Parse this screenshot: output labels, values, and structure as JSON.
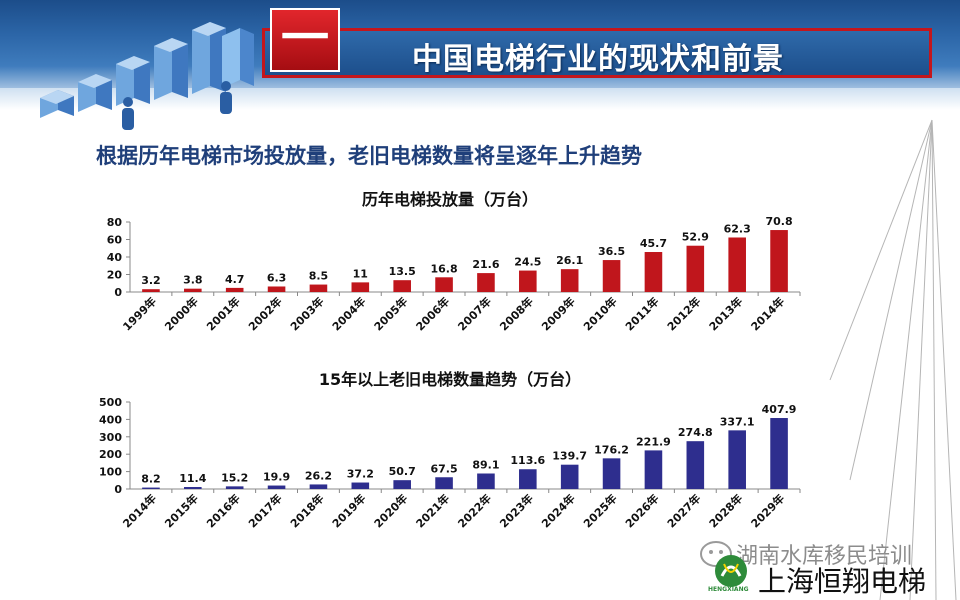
{
  "header": {
    "section_number": "一",
    "title": "中国电梯行业的现状和前景"
  },
  "subtitle": "根据历年电梯市场投放量，老旧电梯数量将呈逐年上升趋势",
  "colors": {
    "chart1_bar": "#c0161c",
    "chart2_bar": "#2e2e8e",
    "header_blue": "#2c66a8",
    "title_red": "#c4161c"
  },
  "chart_data": [
    {
      "type": "bar",
      "title": "历年电梯投放量（万台）",
      "categories": [
        "1999年",
        "2000年",
        "2001年",
        "2002年",
        "2003年",
        "2004年",
        "2005年",
        "2006年",
        "2007年",
        "2008年",
        "2009年",
        "2010年",
        "2011年",
        "2012年",
        "2013年",
        "2014年"
      ],
      "values": [
        3.2,
        3.8,
        4.7,
        6.3,
        8.5,
        11,
        13.5,
        16.8,
        21.6,
        24.5,
        26.1,
        36.5,
        45.7,
        52.9,
        62.3,
        70.8
      ],
      "ylim": [
        0,
        80
      ],
      "yticks": [
        "0",
        "20",
        "40",
        "60",
        "80"
      ],
      "grid": false
    },
    {
      "type": "bar",
      "title": "15年以上老旧电梯数量趋势（万台）",
      "categories": [
        "2014年",
        "2015年",
        "2016年",
        "2017年",
        "2018年",
        "2019年",
        "2020年",
        "2021年",
        "2022年",
        "2023年",
        "2024年",
        "2025年",
        "2026年",
        "2027年",
        "2028年",
        "2029年"
      ],
      "values": [
        8.2,
        11.4,
        15.2,
        19.9,
        26.2,
        37.2,
        50.7,
        67.5,
        89.1,
        113.6,
        139.7,
        176.2,
        221.9,
        274.8,
        337.1,
        407.9
      ],
      "ylim": [
        0,
        500
      ],
      "yticks": [
        "0",
        "100",
        "200",
        "300",
        "400",
        "500"
      ],
      "grid": false
    }
  ],
  "watermark": {
    "line1": "湖南水库移民培训",
    "line2": "上海恒翔电梯",
    "logo_text": "HENGXIANG"
  }
}
